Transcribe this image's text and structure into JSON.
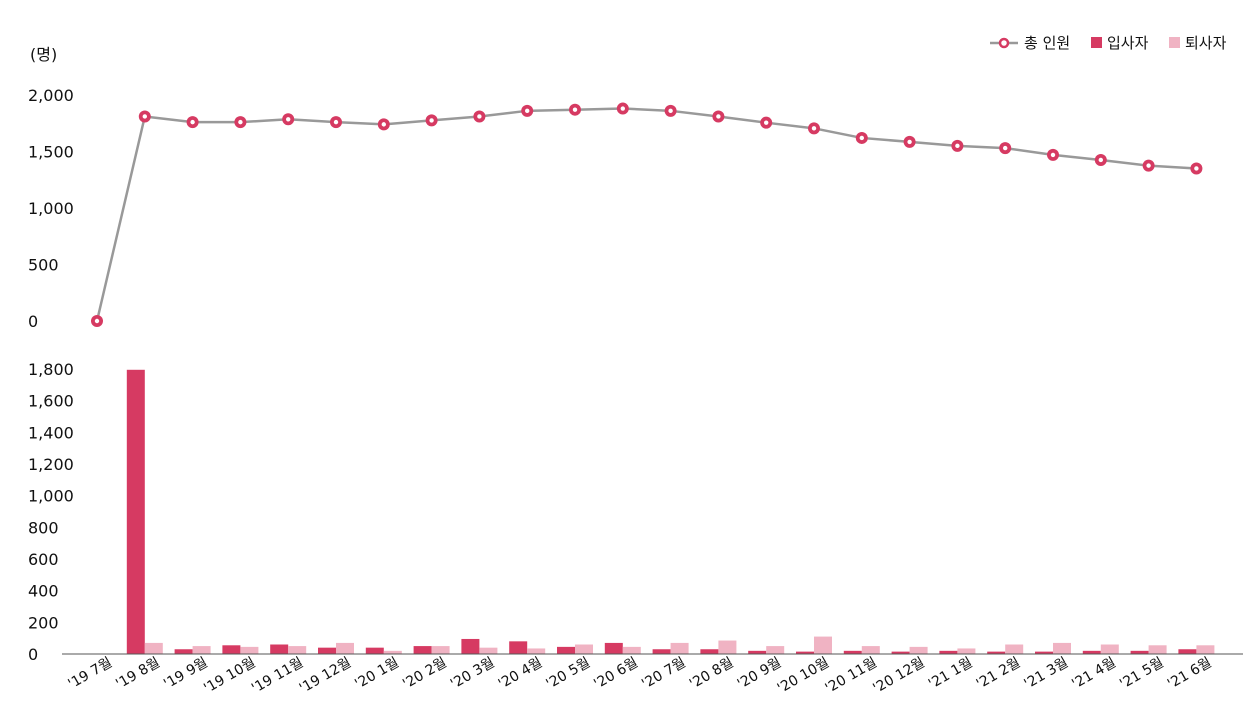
{
  "chart_data": [
    {
      "type": "line",
      "unit_label": "(명)",
      "categories": [
        "'19 7월",
        "'19 8월",
        "'19 9월",
        "'19 10월",
        "'19 11월",
        "'19 12월",
        "'20 1월",
        "'20 2월",
        "'20 3월",
        "'20 4월",
        "'20 5월",
        "'20 6월",
        "'20 7월",
        "'20 8월",
        "'20 9월",
        "'20 10월",
        "'20 11월",
        "'20 12월",
        "'21 1월",
        "'21 2월",
        "'21 3월",
        "'21 4월",
        "'21 5월",
        "'21 6월"
      ],
      "series": [
        {
          "name": "총 인원",
          "color": "#999999",
          "marker_color": "#d63a62",
          "values": [
            0,
            1810,
            1760,
            1760,
            1785,
            1760,
            1740,
            1775,
            1810,
            1860,
            1870,
            1880,
            1860,
            1810,
            1755,
            1705,
            1620,
            1585,
            1550,
            1530,
            1470,
            1425,
            1375,
            1350
          ]
        }
      ],
      "ylim": [
        0,
        2000
      ],
      "yticks": [
        "0",
        "500",
        "1,000",
        "1,500",
        "2,000"
      ],
      "grid": false,
      "legend": "top-right"
    },
    {
      "type": "bar",
      "categories": [
        "'19 7월",
        "'19 8월",
        "'19 9월",
        "'19 10월",
        "'19 11월",
        "'19 12월",
        "'20 1월",
        "'20 2월",
        "'20 3월",
        "'20 4월",
        "'20 5월",
        "'20 6월",
        "'20 7월",
        "'20 8월",
        "'20 9월",
        "'20 10월",
        "'20 11월",
        "'20 12월",
        "'21 1월",
        "'21 2월",
        "'21 3월",
        "'21 4월",
        "'21 5월",
        "'21 6월"
      ],
      "series": [
        {
          "name": "입사자",
          "color": "#d63a62",
          "values": [
            0,
            1795,
            30,
            55,
            60,
            40,
            40,
            50,
            95,
            80,
            45,
            70,
            30,
            30,
            20,
            15,
            20,
            15,
            20,
            15,
            15,
            20,
            20,
            30
          ]
        },
        {
          "name": "퇴사자",
          "color": "#f0b3c3",
          "values": [
            0,
            70,
            50,
            45,
            50,
            70,
            20,
            50,
            40,
            35,
            60,
            45,
            70,
            85,
            50,
            110,
            50,
            45,
            35,
            60,
            70,
            60,
            55,
            55
          ]
        }
      ],
      "ylim": [
        0,
        1800
      ],
      "yticks": [
        "0",
        "200",
        "400",
        "600",
        "800",
        "1,000",
        "1,200",
        "1,400",
        "1,600",
        "1,800"
      ],
      "grid": false
    }
  ],
  "legend": {
    "line_label": "총 인원",
    "hire_label": "입사자",
    "leave_label": "퇴사자"
  }
}
